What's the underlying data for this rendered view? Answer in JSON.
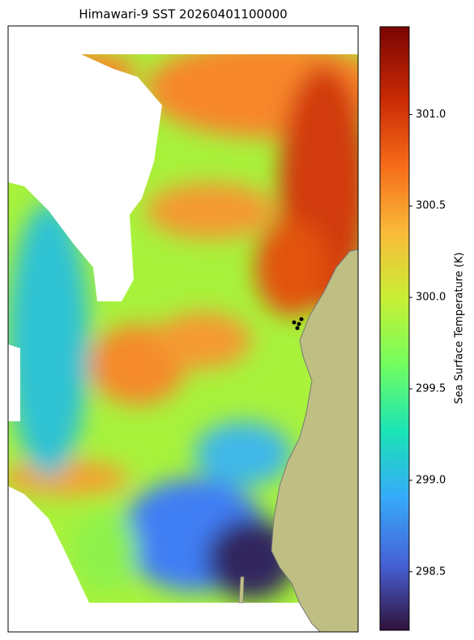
{
  "title": "Himawari-9 SST 20260401100000",
  "colorbar": {
    "label": "Sea Surface Temperature (K)",
    "lim": [
      298.18,
      301.48
    ],
    "ticks": [
      298.5,
      {
        "value": 299,
        "label": "299.0"
      },
      299.5,
      {
        "value": 300,
        "label": "300.0"
      },
      300.5,
      {
        "value": 301,
        "label": "301.0"
      }
    ]
  }
}
